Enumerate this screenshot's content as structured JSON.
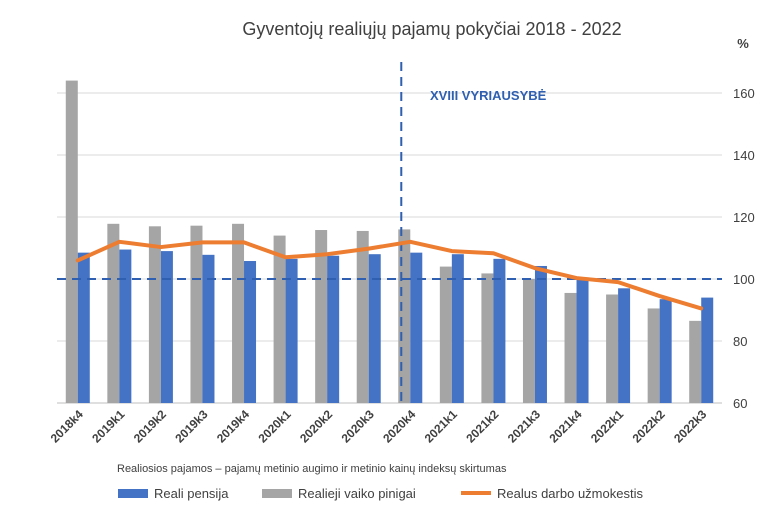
{
  "chart_data": {
    "type": "bar",
    "title": "Gyventojų realiųjų pajamų pokyčiai 2018 - 2022",
    "unit_label": "%",
    "annotation": "XVIII VYRIAUSYBĖ",
    "note": "Realiosios pajamos – pajamų metinio augimo ir metinio kainų indeksų skirtumas",
    "categories": [
      "2018k4",
      "2019k1",
      "2019k2",
      "2019k3",
      "2019k4",
      "2020k1",
      "2020k2",
      "2020k3",
      "2020k4",
      "2021k1",
      "2021k2",
      "2021k3",
      "2021k4",
      "2022k1",
      "2022k2",
      "2022k3"
    ],
    "ylim": [
      60,
      170
    ],
    "yticks": [
      60,
      80,
      100,
      120,
      140,
      160
    ],
    "axis_position": "right",
    "reference_line": 100,
    "vertical_marker_after": "2020k4",
    "grid": true,
    "legend_position": "bottom",
    "series": [
      {
        "name": "Reali pensija",
        "kind": "bar",
        "color": "#4472c4",
        "values": [
          108.5,
          109.5,
          109,
          107.8,
          105.8,
          106.5,
          107.5,
          108,
          108.5,
          108,
          106.5,
          104.2,
          100.5,
          97,
          93.5,
          94
        ]
      },
      {
        "name": "Realieji vaiko pinigai",
        "kind": "bar",
        "color": "#a5a5a5",
        "values": [
          164,
          117.8,
          117,
          117.2,
          117.8,
          114,
          115.8,
          115.5,
          116,
          104,
          101.8,
          100,
          95.5,
          95,
          90.5,
          86.5
        ]
      },
      {
        "name": "Realus darbo užmokestis",
        "kind": "line",
        "color": "#ed7d31",
        "values": [
          106,
          112,
          110.3,
          111.8,
          111.8,
          107,
          108,
          109.8,
          112,
          109,
          108.3,
          103.5,
          100.3,
          99,
          94.5,
          90.5
        ]
      }
    ]
  }
}
